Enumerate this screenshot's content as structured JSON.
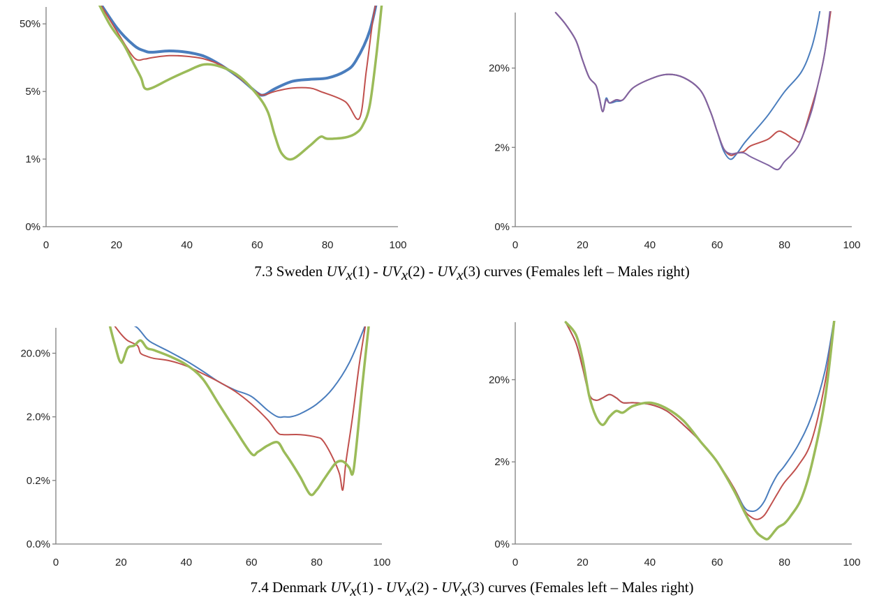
{
  "captions": [
    {
      "prefix": "7.3 Sweden ",
      "terms": [
        "UV",
        "x",
        "(1)",
        " - ",
        "UV",
        "x",
        "(2)",
        " - ",
        "UV",
        "x",
        "(3)"
      ],
      "suffix": " curves (Females left – Males right)"
    },
    {
      "prefix": "7.4 Denmark ",
      "terms": [
        "UV",
        "x",
        "(1)",
        " - ",
        "UV",
        "x",
        "(2)",
        " - ",
        "UV",
        "x",
        "(3)"
      ],
      "suffix": " curves (Females left – Males right)"
    }
  ],
  "colors": {
    "uv1": "#4a7dbd",
    "uv2": "#c0504d",
    "uv3": "#9bbb59",
    "uv3_sweden_males": "#8064a2"
  },
  "chart_data": [
    {
      "type": "line",
      "panel": "Sweden Females",
      "xlim": [
        0,
        100
      ],
      "xticks": [
        "0",
        "20",
        "40",
        "60",
        "80",
        "100"
      ],
      "yticks": [
        "0%",
        "1%",
        "5%",
        "50%"
      ],
      "series": [
        {
          "key": "uv1",
          "width": 4,
          "x": [
            13,
            20,
            25,
            28,
            30,
            35,
            40,
            45,
            50,
            55,
            60,
            62,
            65,
            70,
            75,
            80,
            85,
            88,
            92,
            95
          ],
          "y": [
            3.5,
            2.95,
            2.68,
            2.6,
            2.58,
            2.6,
            2.58,
            2.52,
            2.38,
            2.2,
            1.98,
            1.95,
            2.04,
            2.15,
            2.18,
            2.2,
            2.3,
            2.45,
            2.9,
            3.6
          ]
        },
        {
          "key": "uv2",
          "width": 2,
          "x": [
            13,
            20,
            25,
            28,
            30,
            35,
            40,
            45,
            50,
            55,
            60,
            62,
            65,
            70,
            75,
            78,
            85,
            89,
            91,
            93,
            95
          ],
          "y": [
            3.5,
            2.9,
            2.5,
            2.48,
            2.5,
            2.53,
            2.52,
            2.48,
            2.38,
            2.2,
            1.98,
            1.95,
            2.0,
            2.05,
            2.05,
            2.0,
            1.85,
            1.6,
            2.3,
            3.1,
            3.6
          ]
        },
        {
          "key": "uv3",
          "width": 3.5,
          "x": [
            13,
            18,
            22,
            25,
            27,
            28,
            30,
            35,
            40,
            45,
            50,
            55,
            60,
            63,
            65,
            67,
            70,
            75,
            78,
            80,
            85,
            88,
            90,
            92,
            94,
            96
          ],
          "y": [
            3.5,
            3.0,
            2.7,
            2.4,
            2.2,
            2.05,
            2.05,
            2.18,
            2.3,
            2.4,
            2.36,
            2.22,
            1.95,
            1.7,
            1.35,
            1.08,
            1.0,
            1.2,
            1.33,
            1.3,
            1.32,
            1.38,
            1.5,
            1.8,
            2.6,
            3.6
          ]
        }
      ]
    },
    {
      "type": "line",
      "panel": "Sweden Males",
      "xlim": [
        0,
        100
      ],
      "xticks": [
        "0",
        "20",
        "40",
        "60",
        "80",
        "100"
      ],
      "yticks": [
        "0%",
        "2%",
        "20%"
      ],
      "series": [
        {
          "key": "uv1",
          "width": 2,
          "x": [
            12,
            15,
            18,
            20,
            22,
            24,
            25,
            26,
            27,
            28,
            30,
            32,
            35,
            40,
            45,
            50,
            55,
            58,
            60,
            62,
            64,
            66,
            68,
            70,
            75,
            80,
            85,
            88,
            90,
            92
          ],
          "y": [
            2.7,
            2.55,
            2.35,
            2.1,
            1.88,
            1.78,
            1.62,
            1.45,
            1.62,
            1.56,
            1.58,
            1.6,
            1.75,
            1.86,
            1.92,
            1.88,
            1.72,
            1.45,
            1.2,
            0.95,
            0.85,
            0.93,
            1.05,
            1.15,
            1.4,
            1.7,
            1.95,
            2.25,
            2.6,
            3.1
          ]
        },
        {
          "key": "uv2",
          "width": 2,
          "x": [
            12,
            15,
            18,
            20,
            22,
            24,
            25,
            26,
            27,
            28,
            30,
            32,
            35,
            40,
            45,
            50,
            55,
            58,
            60,
            62,
            64,
            66,
            68,
            70,
            75,
            78,
            80,
            83,
            85,
            88,
            90,
            92,
            94
          ],
          "y": [
            2.7,
            2.55,
            2.35,
            2.1,
            1.88,
            1.78,
            1.62,
            1.45,
            1.6,
            1.56,
            1.6,
            1.6,
            1.75,
            1.86,
            1.92,
            1.88,
            1.72,
            1.45,
            1.2,
            0.98,
            0.9,
            0.93,
            0.95,
            1.02,
            1.1,
            1.2,
            1.18,
            1.1,
            1.1,
            1.5,
            1.8,
            2.2,
            2.8
          ]
        },
        {
          "key": "uv3_sweden_males",
          "width": 2,
          "x": [
            12,
            15,
            18,
            20,
            22,
            24,
            25,
            26,
            27,
            28,
            30,
            32,
            35,
            40,
            45,
            50,
            55,
            58,
            60,
            62,
            64,
            66,
            68,
            70,
            75,
            78,
            80,
            83,
            85,
            88,
            90,
            92,
            94
          ],
          "y": [
            2.7,
            2.55,
            2.35,
            2.1,
            1.88,
            1.78,
            1.62,
            1.45,
            1.6,
            1.56,
            1.6,
            1.6,
            1.75,
            1.86,
            1.92,
            1.88,
            1.72,
            1.45,
            1.2,
            0.98,
            0.92,
            0.93,
            0.93,
            0.88,
            0.78,
            0.72,
            0.82,
            0.95,
            1.1,
            1.45,
            1.8,
            2.2,
            2.9
          ]
        }
      ]
    },
    {
      "type": "line",
      "panel": "Denmark Females",
      "xlim": [
        0,
        100
      ],
      "xticks": [
        "0",
        "20",
        "40",
        "60",
        "80",
        "100"
      ],
      "yticks": [
        "0.0%",
        "0.2%",
        "2.0%",
        "20.0%"
      ],
      "series": [
        {
          "key": "uv1",
          "width": 2,
          "x": [
            20,
            22,
            25,
            28,
            30,
            35,
            40,
            45,
            50,
            55,
            60,
            65,
            68,
            70,
            72,
            75,
            80,
            85,
            90,
            95
          ],
          "y": [
            3.55,
            3.48,
            3.4,
            3.22,
            3.15,
            3.02,
            2.88,
            2.72,
            2.55,
            2.42,
            2.32,
            2.1,
            2.0,
            2.0,
            2.0,
            2.05,
            2.2,
            2.45,
            2.85,
            3.45
          ]
        },
        {
          "key": "uv2",
          "width": 2,
          "x": [
            17,
            20,
            22,
            25,
            26,
            28,
            30,
            35,
            40,
            45,
            50,
            55,
            60,
            65,
            68,
            70,
            75,
            80,
            82,
            85,
            87,
            88,
            89,
            91,
            93,
            95
          ],
          "y": [
            3.5,
            3.3,
            3.2,
            3.12,
            3.0,
            2.95,
            2.92,
            2.88,
            2.8,
            2.68,
            2.55,
            2.4,
            2.2,
            1.95,
            1.75,
            1.72,
            1.72,
            1.68,
            1.62,
            1.35,
            1.1,
            0.85,
            1.3,
            2.0,
            2.8,
            3.45
          ]
        },
        {
          "key": "uv3",
          "width": 3.5,
          "x": [
            16,
            18,
            20,
            22,
            24,
            26,
            28,
            30,
            35,
            40,
            45,
            50,
            55,
            60,
            62,
            65,
            68,
            70,
            72,
            75,
            78,
            80,
            82,
            84,
            86,
            88,
            90,
            91,
            92,
            94,
            96
          ],
          "y": [
            3.55,
            3.15,
            2.85,
            3.08,
            3.12,
            3.2,
            3.08,
            3.05,
            2.95,
            2.82,
            2.6,
            2.2,
            1.8,
            1.42,
            1.45,
            1.55,
            1.6,
            1.45,
            1.3,
            1.05,
            0.78,
            0.85,
            1.0,
            1.15,
            1.28,
            1.3,
            1.2,
            1.1,
            1.45,
            2.5,
            3.45
          ]
        }
      ]
    },
    {
      "type": "line",
      "panel": "Denmark Males",
      "xlim": [
        0,
        100
      ],
      "xticks": [
        "0",
        "20",
        "40",
        "60",
        "80",
        "100"
      ],
      "yticks": [
        "0%",
        "2%",
        "20%"
      ],
      "series": [
        {
          "key": "uv1",
          "width": 2,
          "x": [
            15,
            18,
            20,
            22,
            24,
            26,
            28,
            30,
            32,
            35,
            40,
            45,
            50,
            55,
            60,
            65,
            68,
            70,
            72,
            74,
            76,
            78,
            80,
            84,
            88,
            92,
            95
          ],
          "y": [
            2.7,
            2.45,
            2.15,
            1.82,
            1.75,
            1.78,
            1.82,
            1.78,
            1.72,
            1.72,
            1.7,
            1.62,
            1.45,
            1.25,
            1.0,
            0.68,
            0.45,
            0.4,
            0.42,
            0.52,
            0.7,
            0.85,
            0.95,
            1.2,
            1.55,
            2.1,
            2.8
          ]
        },
        {
          "key": "uv2",
          "width": 2,
          "x": [
            15,
            18,
            20,
            22,
            24,
            26,
            28,
            30,
            32,
            35,
            40,
            45,
            50,
            55,
            60,
            65,
            68,
            70,
            72,
            74,
            76,
            78,
            80,
            84,
            88,
            92,
            95
          ],
          "y": [
            2.7,
            2.45,
            2.15,
            1.82,
            1.75,
            1.78,
            1.82,
            1.78,
            1.72,
            1.72,
            1.7,
            1.62,
            1.45,
            1.25,
            1.0,
            0.68,
            0.42,
            0.33,
            0.3,
            0.35,
            0.48,
            0.62,
            0.75,
            0.95,
            1.25,
            1.95,
            2.8
          ]
        },
        {
          "key": "uv3",
          "width": 3.5,
          "x": [
            15,
            18,
            20,
            22,
            24,
            26,
            28,
            30,
            32,
            35,
            40,
            45,
            50,
            55,
            60,
            65,
            68,
            70,
            72,
            74,
            75,
            76,
            78,
            80,
            82,
            85,
            88,
            92,
            95
          ],
          "y": [
            2.7,
            2.55,
            2.25,
            1.8,
            1.55,
            1.45,
            1.55,
            1.62,
            1.6,
            1.68,
            1.72,
            1.65,
            1.5,
            1.25,
            1.0,
            0.65,
            0.4,
            0.25,
            0.13,
            0.07,
            0.06,
            0.1,
            0.2,
            0.25,
            0.35,
            0.55,
            0.95,
            1.75,
            2.8
          ]
        }
      ]
    }
  ]
}
